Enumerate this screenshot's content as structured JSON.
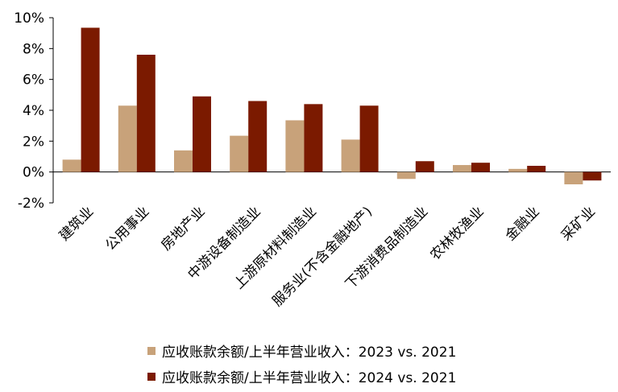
{
  "chart_data": {
    "type": "bar",
    "categories": [
      "建筑业",
      "公用事业",
      "房地产业",
      "中游设备制造业",
      "上游原材料制造业",
      "服务业(不含金融地产)",
      "下游消费品制造业",
      "农林牧渔业",
      "金融业",
      "采矿业"
    ],
    "series": [
      {
        "name": "应收账款余额/上半年营业收入：2023 vs. 2021",
        "color": "#c8a27a",
        "values": [
          0.8,
          4.3,
          1.4,
          2.35,
          3.35,
          2.1,
          -0.45,
          0.45,
          0.2,
          -0.8
        ]
      },
      {
        "name": "应收账款余额/上半年营业收入：2024 vs. 2021",
        "color": "#7b1a00",
        "values": [
          9.35,
          7.6,
          4.9,
          4.6,
          4.4,
          4.3,
          0.7,
          0.6,
          0.4,
          -0.55
        ]
      }
    ],
    "yticks": [
      "10%",
      "8%",
      "6%",
      "4%",
      "2%",
      "0%",
      "-2%"
    ],
    "ylim": [
      -2,
      10
    ],
    "ylabel": "",
    "xlabel": "",
    "title": "",
    "legend_position": "bottom"
  }
}
